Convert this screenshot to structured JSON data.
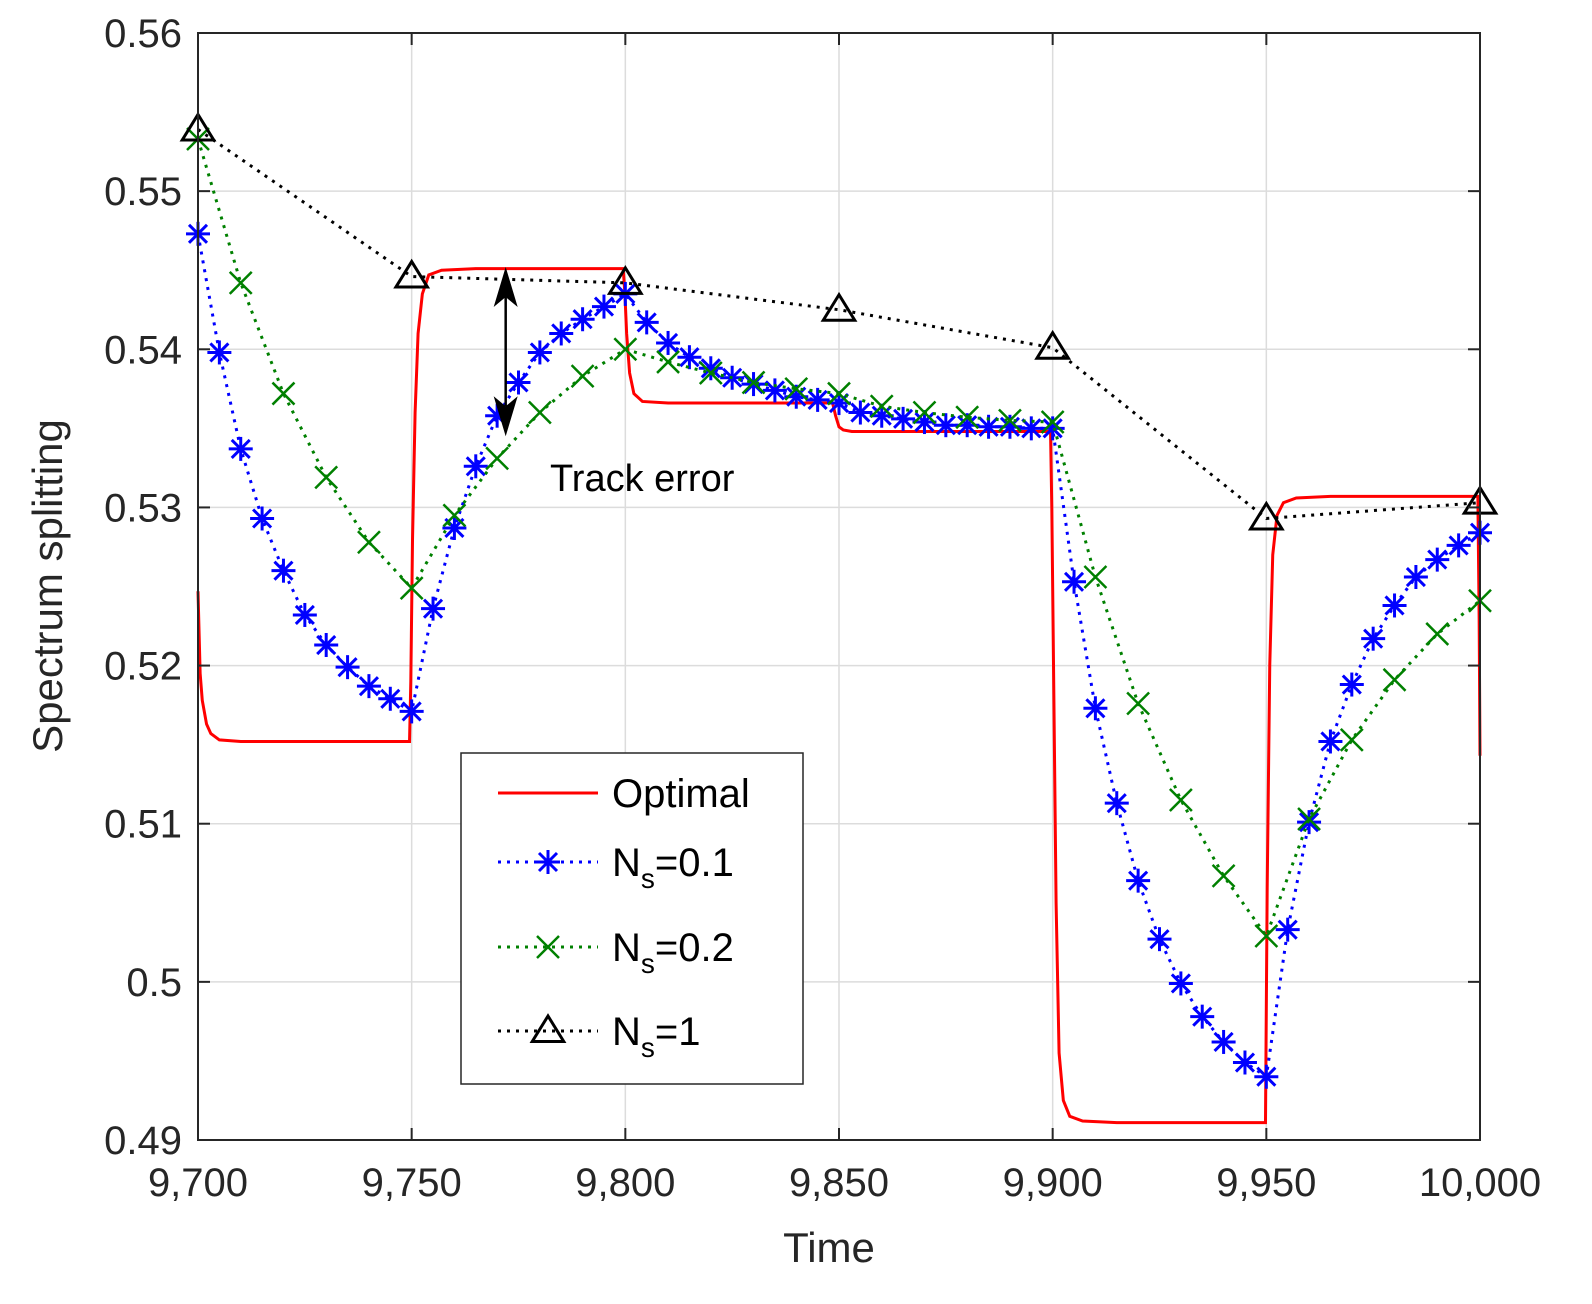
{
  "chart_data": {
    "type": "line",
    "title": "",
    "xlabel": "Time",
    "ylabel": "Spectrum splitting",
    "xlim": [
      9700,
      10000
    ],
    "ylim": [
      0.49,
      0.56
    ],
    "xticks": [
      9700,
      9750,
      9800,
      9850,
      9900,
      9950,
      10000
    ],
    "xtick_labels": [
      "9,700",
      "9,750",
      "9,800",
      "9,850",
      "9,900",
      "9,950",
      "10,000"
    ],
    "yticks": [
      0.49,
      0.5,
      0.51,
      0.52,
      0.53,
      0.54,
      0.55,
      0.56
    ],
    "ytick_labels": [
      "0.49",
      "0.5",
      "0.51",
      "0.52",
      "0.53",
      "0.54",
      "0.55",
      "0.56"
    ],
    "grid": true,
    "legend_position": "bottom-center",
    "annotation": {
      "text": "Track error",
      "arrow_x": 9772,
      "arrow_from": 0.5452,
      "arrow_to": 0.5345
    },
    "series": [
      {
        "name": "Optimal",
        "label_main": "Optimal",
        "label_sub": "",
        "label_tail": "",
        "color": "#ff0000",
        "style": "solid",
        "marker": "none",
        "x": [
          9700,
          9700.5,
          9701,
          9702,
          9703,
          9705,
          9710,
          9720,
          9730,
          9740,
          9749.5,
          9749.8,
          9750.2,
          9750.8,
          9751.5,
          9752.5,
          9754,
          9757,
          9765,
          9780,
          9799.5,
          9799.9,
          9800.3,
          9801,
          9802,
          9804,
          9810,
          9820,
          9830,
          9840,
          9848.5,
          9849.2,
          9850,
          9851,
          9853,
          9860,
          9870,
          9880,
          9890,
          9899.5,
          9899.8,
          9900.2,
          9900.8,
          9901.5,
          9902.5,
          9904,
          9907,
          9915,
          9930,
          9949.5,
          9949.8,
          9950.2,
          9950.8,
          9951.5,
          9952.5,
          9954,
          9957,
          9965,
          9980,
          9999.5,
          9999.8,
          10000
        ],
        "y": [
          0.5247,
          0.5195,
          0.5178,
          0.5163,
          0.5157,
          0.5153,
          0.5152,
          0.5152,
          0.5152,
          0.5152,
          0.5152,
          0.519,
          0.528,
          0.536,
          0.541,
          0.5435,
          0.5447,
          0.545,
          0.5451,
          0.5451,
          0.5451,
          0.5435,
          0.541,
          0.5385,
          0.5372,
          0.5367,
          0.5366,
          0.5366,
          0.5366,
          0.5366,
          0.5366,
          0.5358,
          0.5351,
          0.5349,
          0.5348,
          0.5348,
          0.5348,
          0.5348,
          0.5348,
          0.5348,
          0.53,
          0.52,
          0.505,
          0.4955,
          0.4925,
          0.4915,
          0.4912,
          0.4911,
          0.4911,
          0.4911,
          0.4911,
          0.506,
          0.52,
          0.527,
          0.5295,
          0.5303,
          0.5306,
          0.5307,
          0.5307,
          0.5307,
          0.523,
          0.5143
        ]
      },
      {
        "name": "Ns=0.1",
        "label_main": "N",
        "label_sub": "s",
        "label_tail": "=0.1",
        "color": "#0000ff",
        "style": "dotted",
        "marker": "star",
        "x": [
          9700,
          9705,
          9710,
          9715,
          9720,
          9725,
          9730,
          9735,
          9740,
          9745,
          9750,
          9755,
          9760,
          9765,
          9770,
          9775,
          9780,
          9785,
          9790,
          9795,
          9800,
          9805,
          9810,
          9815,
          9820,
          9825,
          9830,
          9835,
          9840,
          9845,
          9850,
          9855,
          9860,
          9865,
          9870,
          9875,
          9880,
          9885,
          9890,
          9895,
          9900,
          9905,
          9910,
          9915,
          9920,
          9925,
          9930,
          9935,
          9940,
          9945,
          9950,
          9955,
          9960,
          9965,
          9970,
          9975,
          9980,
          9985,
          9990,
          9995,
          10000
        ],
        "y": [
          0.5473,
          0.5398,
          0.5337,
          0.5293,
          0.526,
          0.5232,
          0.5213,
          0.5199,
          0.5187,
          0.5179,
          0.5171,
          0.5236,
          0.5287,
          0.5326,
          0.5358,
          0.5379,
          0.5398,
          0.541,
          0.5419,
          0.5427,
          0.5435,
          0.5417,
          0.5404,
          0.5395,
          0.5388,
          0.5382,
          0.5378,
          0.5374,
          0.537,
          0.5368,
          0.5366,
          0.536,
          0.5358,
          0.5356,
          0.5354,
          0.5352,
          0.5352,
          0.5351,
          0.5351,
          0.535,
          0.535,
          0.5253,
          0.5173,
          0.5113,
          0.5064,
          0.5027,
          0.4999,
          0.4978,
          0.4962,
          0.4949,
          0.494,
          0.5033,
          0.5101,
          0.5152,
          0.5188,
          0.5217,
          0.5238,
          0.5256,
          0.5267,
          0.5276,
          0.5284
        ]
      },
      {
        "name": "Ns=0.2",
        "label_main": "N",
        "label_sub": "s",
        "label_tail": "=0.2",
        "color": "#008000",
        "style": "dotted",
        "marker": "x",
        "x": [
          9700,
          9710,
          9720,
          9730,
          9740,
          9750,
          9760,
          9770,
          9780,
          9790,
          9800,
          9810,
          9820,
          9830,
          9840,
          9850,
          9860,
          9870,
          9880,
          9890,
          9900,
          9910,
          9920,
          9930,
          9940,
          9950,
          9960,
          9970,
          9980,
          9990,
          10000
        ],
        "y": [
          0.5533,
          0.5442,
          0.5372,
          0.5319,
          0.5278,
          0.5249,
          0.5295,
          0.5331,
          0.536,
          0.5383,
          0.54,
          0.5392,
          0.5385,
          0.5379,
          0.5375,
          0.5372,
          0.5364,
          0.536,
          0.5357,
          0.5355,
          0.5354,
          0.5256,
          0.5176,
          0.5115,
          0.5067,
          0.5029,
          0.5103,
          0.5153,
          0.5191,
          0.522,
          0.5241
        ]
      },
      {
        "name": "Ns=1",
        "label_main": "N",
        "label_sub": "s",
        "label_tail": "=1",
        "color": "#000000",
        "style": "dotted",
        "marker": "triangle",
        "x": [
          9700,
          9750,
          9800,
          9850,
          9900,
          9950,
          10000
        ],
        "y": [
          0.5539,
          0.5446,
          0.5442,
          0.5425,
          0.5401,
          0.5293,
          0.5303
        ]
      }
    ]
  }
}
